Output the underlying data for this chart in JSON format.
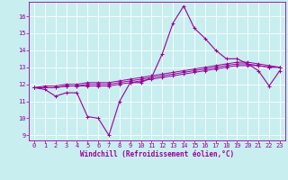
{
  "title": "",
  "xlabel": "Windchill (Refroidissement éolien,°C)",
  "ylabel": "",
  "background_color": "#c8eef0",
  "grid_color": "#ffffff",
  "line_color": "#990099",
  "xlim": [
    -0.5,
    23.5
  ],
  "ylim": [
    8.7,
    16.85
  ],
  "yticks": [
    9,
    10,
    11,
    12,
    13,
    14,
    15,
    16
  ],
  "xticks": [
    0,
    1,
    2,
    3,
    4,
    5,
    6,
    7,
    8,
    9,
    10,
    11,
    12,
    13,
    14,
    15,
    16,
    17,
    18,
    19,
    20,
    21,
    22,
    23
  ],
  "series": [
    [
      11.8,
      11.7,
      11.3,
      11.5,
      11.5,
      10.1,
      10.0,
      9.0,
      11.0,
      12.1,
      12.1,
      12.4,
      13.8,
      15.6,
      16.6,
      15.3,
      14.7,
      14.0,
      13.5,
      13.5,
      13.2,
      12.8,
      11.9,
      12.8
    ],
    [
      11.8,
      11.8,
      11.8,
      11.9,
      11.9,
      11.9,
      11.9,
      11.9,
      12.0,
      12.1,
      12.2,
      12.3,
      12.4,
      12.5,
      12.6,
      12.7,
      12.8,
      12.9,
      13.0,
      13.1,
      13.1,
      13.1,
      13.0,
      13.0
    ],
    [
      11.8,
      11.8,
      11.8,
      11.9,
      11.9,
      12.0,
      12.0,
      12.0,
      12.1,
      12.2,
      12.3,
      12.4,
      12.5,
      12.6,
      12.7,
      12.8,
      12.9,
      13.0,
      13.1,
      13.2,
      13.2,
      13.1,
      13.0,
      13.0
    ],
    [
      11.8,
      11.9,
      11.9,
      12.0,
      12.0,
      12.1,
      12.1,
      12.1,
      12.2,
      12.3,
      12.4,
      12.5,
      12.6,
      12.7,
      12.8,
      12.9,
      13.0,
      13.1,
      13.2,
      13.3,
      13.3,
      13.2,
      13.1,
      13.0
    ]
  ],
  "tick_fontsize": 5.0,
  "xlabel_fontsize": 5.5,
  "marker_size": 2.5,
  "linewidth_main": 0.8,
  "linewidth_smooth": 0.7
}
